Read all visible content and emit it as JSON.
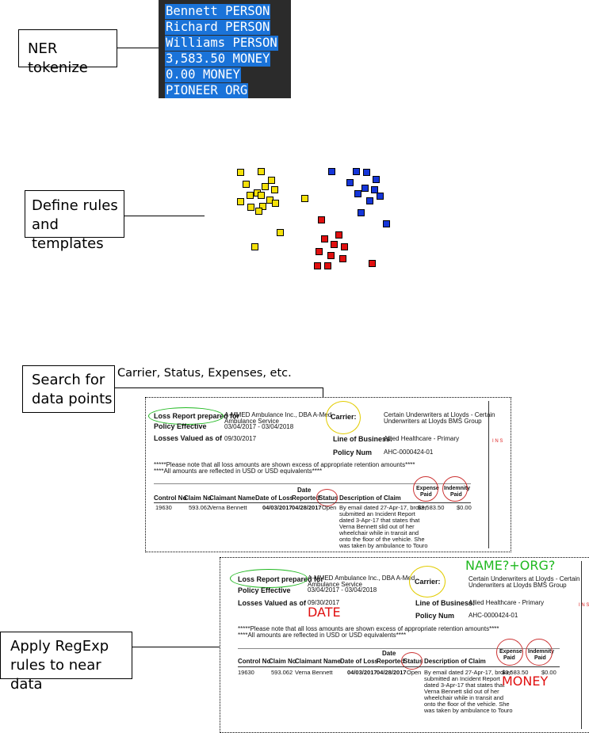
{
  "steps": {
    "ner": "NER tokenize",
    "rules_line1": "Define rules",
    "rules_line2": "and templates",
    "search_line1": "Search for",
    "search_line2": "data points",
    "apply_line1": "Apply RegExp",
    "apply_line2": "rules to near data"
  },
  "ner_tokens": [
    "Bennett PERSON",
    "Richard PERSON",
    "Williams PERSON",
    "3,583.50 MONEY",
    "0.00 MONEY",
    "PIONEER ORG"
  ],
  "search_caption": "Carrier, Status, Expenses, etc.",
  "colors": {
    "yellow": "#f5e10a",
    "blue": "#1536d9",
    "red": "#e01010",
    "green": "#1fb81f",
    "terminal_bg": "#2b2b2b",
    "highlight": "#1a73d9"
  },
  "report": {
    "loss_report_label": "Loss Report prepared for",
    "insured_name_1": "A-MMED Ambulance Inc., DBA A-Med",
    "insured_name_2": "Ambulance Service",
    "policy_effective_label": "Policy Effective",
    "policy_effective_value": "03/04/2017 - 03/04/2018",
    "losses_valued_label": "Losses Valued as of",
    "losses_valued_value": "09/30/2017",
    "carrier_label": "Carrier:",
    "carrier_value_1": "Certain Underwriters at Lloyds - Certain",
    "carrier_value_2": "Underwriters at Lloyds BMS Group",
    "lob_label": "Line of Business:",
    "lob_value": "Allied Healthcare - Primary",
    "policy_num_label": "Policy Num",
    "policy_num_value": "AHC-0000424-01",
    "side_mark": "I N S",
    "note_1": "*****Please note that all loss amounts are shown excess of appropriate retention amounts****",
    "note_2": "****All amounts are reflected in USD or USD equivalents****",
    "columns": {
      "control_no": "Control No",
      "claim_no": "Claim No",
      "claimant_name": "Claimant Name",
      "date_of_loss": "Date of Loss",
      "date_reported_1": "Date",
      "date_reported_2": "Reported",
      "status": "Status",
      "description": "Description of Claim",
      "expense_1": "Expense",
      "expense_2": "Paid",
      "indemnity_1": "Indemnity",
      "indemnity_2": "Paid"
    },
    "row": {
      "control_no": "19630",
      "claim_no": "593.062",
      "claimant_name": "Verna Bennett",
      "date_of_loss": "04/03/2017",
      "date_reported": "04/28/2017",
      "status": "Open",
      "description": [
        "By email dated 27-Apr-17, broker",
        "submitted an Incident Report",
        "dated 3-Apr-17 that states that",
        "Verna Bennett slid out of her",
        "wheelchair while in transit and",
        "onto the floor of the vehicle.  She",
        "was taken by ambulance to Touro"
      ],
      "expense_paid": "$3,583.50",
      "indemnity_paid": "$0.00"
    }
  },
  "annotations": {
    "name_org": "NAME?+ORG?",
    "date": "DATE",
    "money": "MONEY"
  }
}
